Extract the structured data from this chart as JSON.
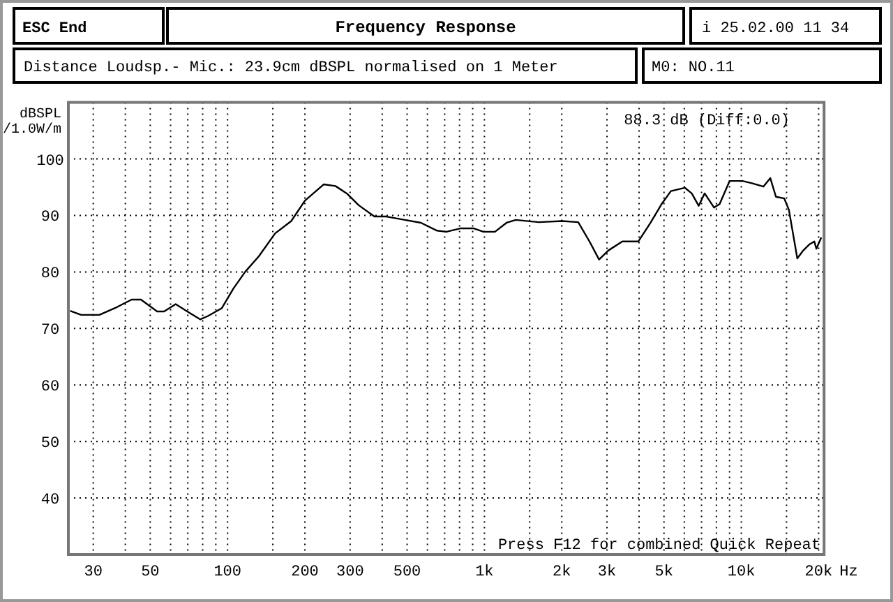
{
  "chart_data": {
    "type": "line",
    "title": "Frequency Response",
    "subtitle": "Distance Loudsp.- Mic.: 23.9cm dBSPL normalised on 1 Meter",
    "ylabel": "dBSPL\n/1.0W/m",
    "annotations": [
      "ESC End",
      "i 25.02.00 11 34",
      "M0: NO.11",
      "88.3 dB (Diff:0.0)",
      "Press F12 for combined Quick Repeat"
    ],
    "log": "x",
    "grid": true,
    "xlim": [
      24,
      21000
    ],
    "ylim": [
      30,
      110
    ],
    "xticks": [
      {
        "value": 30,
        "label": "30"
      },
      {
        "value": 40,
        "label": null
      },
      {
        "value": 50,
        "label": "50"
      },
      {
        "value": 60,
        "label": null
      },
      {
        "value": 70,
        "label": null
      },
      {
        "value": 80,
        "label": null
      },
      {
        "value": 90,
        "label": null
      },
      {
        "value": 100,
        "label": "100"
      },
      {
        "value": 150,
        "label": null
      },
      {
        "value": 200,
        "label": "200"
      },
      {
        "value": 300,
        "label": "300"
      },
      {
        "value": 400,
        "label": null
      },
      {
        "value": 500,
        "label": "500"
      },
      {
        "value": 600,
        "label": null
      },
      {
        "value": 700,
        "label": null
      },
      {
        "value": 800,
        "label": null
      },
      {
        "value": 900,
        "label": null
      },
      {
        "value": 1000,
        "label": "1k"
      },
      {
        "value": 1500,
        "label": null
      },
      {
        "value": 2000,
        "label": "2k"
      },
      {
        "value": 3000,
        "label": "3k"
      },
      {
        "value": 4000,
        "label": null
      },
      {
        "value": 5000,
        "label": "5k"
      },
      {
        "value": 6000,
        "label": null
      },
      {
        "value": 7000,
        "label": null
      },
      {
        "value": 8000,
        "label": null
      },
      {
        "value": 9000,
        "label": null
      },
      {
        "value": 10000,
        "label": "10k"
      },
      {
        "value": 15000,
        "label": null
      },
      {
        "value": 20000,
        "label": "20k"
      }
    ],
    "xlabel": "Hz",
    "yticks": [
      40,
      50,
      60,
      70,
      80,
      90,
      100
    ],
    "series": [
      {
        "color": "#000000",
        "x": [
          24.4,
          26.9,
          31.7,
          37.2,
          42.3,
          46,
          53.2,
          56.6,
          62.8,
          69.7,
          78.2,
          83.9,
          95,
          105.5,
          117,
          132.5,
          153,
          177,
          200,
          237,
          263,
          291,
          324,
          373,
          415,
          490,
          566,
          654,
          711,
          805,
          910,
          991,
          1099,
          1219,
          1325,
          1630,
          2005,
          2318,
          2571,
          2794,
          3038,
          3442,
          3975,
          4415,
          4893,
          5320,
          6025,
          6413,
          6823,
          7200,
          7830,
          8230,
          9010,
          10110,
          11000,
          12190,
          12970,
          13640,
          14700,
          15320,
          16520,
          17350,
          18450,
          19240,
          19600,
          20480
        ],
        "values": [
          73.1,
          72.4,
          72.4,
          73.8,
          75.1,
          75.1,
          73,
          73,
          74.3,
          73,
          71.6,
          72.2,
          73.6,
          77.1,
          80,
          82.8,
          86.8,
          89,
          92.6,
          95.5,
          95.2,
          93.9,
          91.8,
          89.8,
          89.8,
          89.2,
          88.7,
          87.3,
          87.1,
          87.7,
          87.7,
          87.1,
          87.1,
          88.7,
          89.2,
          88.8,
          89,
          88.8,
          85.3,
          82.2,
          83.8,
          85.4,
          85.4,
          88.6,
          92,
          94.3,
          94.9,
          93.9,
          91.7,
          93.9,
          91.4,
          92,
          96.1,
          96.1,
          95.7,
          95.1,
          96.6,
          93.3,
          93,
          91,
          82.4,
          83.7,
          84.9,
          85.4,
          84.1,
          86.1
        ]
      }
    ]
  }
}
